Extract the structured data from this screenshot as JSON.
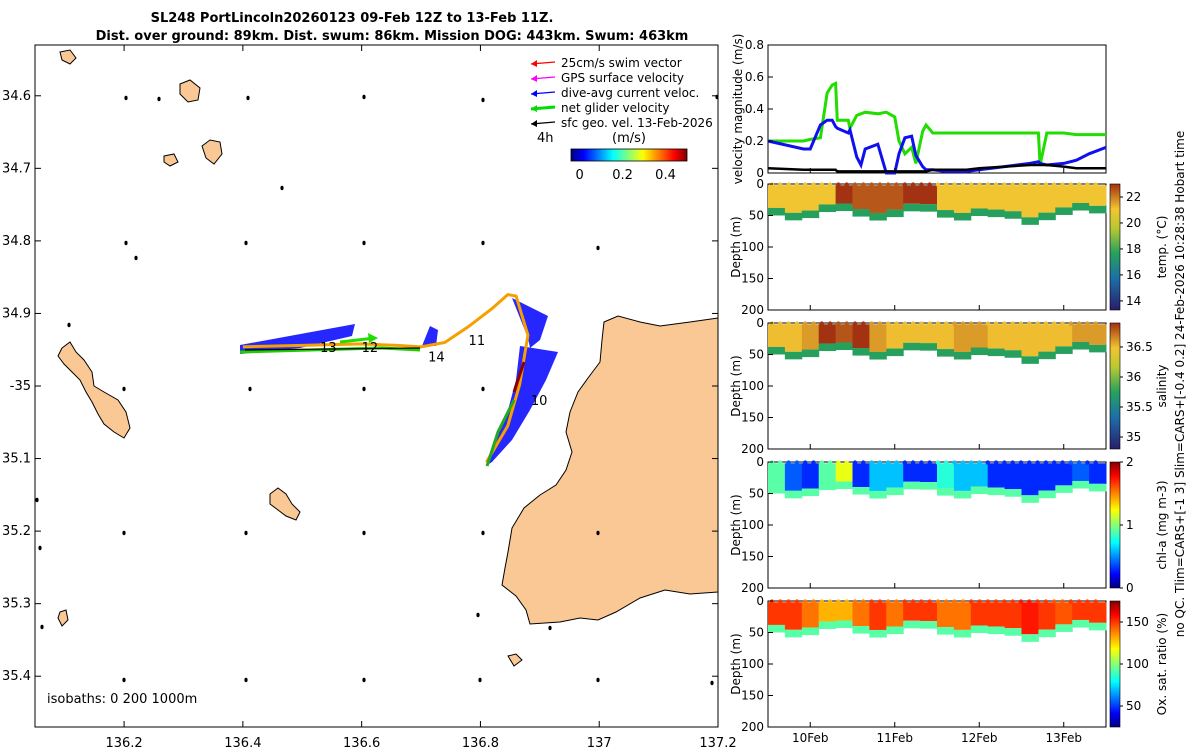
{
  "title": {
    "line1": "SL248 PortLincoln20260123 09-Feb 12Z to 13-Feb 11Z.",
    "line2": "Dist. over ground: 89km. Dist. swum: 86km. Mission DOG: 443km. Swum: 463km"
  },
  "legend": {
    "items": [
      {
        "label": "25cm/s swim vector",
        "color": "#ff0000"
      },
      {
        "label": "GPS surface velocity",
        "color": "#ff00ff"
      },
      {
        "label": "dive-avg current veloc.",
        "color": "#0000ff"
      },
      {
        "label": "net glider velocity",
        "color": "#00dd00"
      },
      {
        "label": "sfc geo. vel. 13-Feb-2026",
        "color": "#000000"
      }
    ],
    "interval": "4h",
    "colorbar_label": "(m/s)",
    "colorbar_ticks": [
      "0",
      "0.2",
      "0.4"
    ]
  },
  "isobaths": "isobaths: 0   200  1000m",
  "side_label": "no QC. Tlim=CARS+[-1 3] Slim=CARS+[-0.4 0.2] 24-Feb-2026 10:28:38 Hobart time",
  "chart_data": [
    {
      "type": "map",
      "xlim": [
        136.05,
        137.2
      ],
      "ylim": [
        -35.47,
        -34.53
      ],
      "x_ticks": [
        136.2,
        136.4,
        136.6,
        136.8,
        137,
        137.2
      ],
      "x_tick_labels": [
        "136.2",
        "136.4",
        "136.6",
        "136.8",
        "137",
        "137.2"
      ],
      "y_ticks": [
        -34.6,
        -34.7,
        -34.8,
        -34.9,
        -35,
        -35.1,
        -35.2,
        -35.3,
        -35.4
      ],
      "y_tick_labels": [
        "34.6",
        "34.7",
        "34.8",
        "34.9",
        "-35",
        "35.1",
        "35.2",
        "35.3",
        "35.4"
      ],
      "track": [
        [
          136.4,
          -34.946
        ],
        [
          136.5,
          -34.944
        ],
        [
          136.6,
          -34.942
        ],
        [
          136.66,
          -34.944
        ],
        [
          136.7,
          -34.946
        ],
        [
          136.74,
          -34.94
        ],
        [
          136.78,
          -34.918
        ],
        [
          136.82,
          -34.893
        ],
        [
          136.846,
          -34.874
        ],
        [
          136.86,
          -34.876
        ],
        [
          136.88,
          -34.93
        ],
        [
          136.866,
          -34.998
        ],
        [
          136.846,
          -35.055
        ],
        [
          136.81,
          -35.105
        ]
      ],
      "day_labels": [
        {
          "text": "13",
          "lon": 136.53,
          "lat": -34.945
        },
        {
          "text": "12",
          "lon": 136.6,
          "lat": -34.945
        },
        {
          "text": "14",
          "lon": 136.712,
          "lat": -34.958
        },
        {
          "text": "11",
          "lon": 136.78,
          "lat": -34.935
        },
        {
          "text": "10",
          "lon": 136.885,
          "lat": -35.018
        }
      ]
    },
    {
      "type": "line",
      "ylabel": "velocity magnitude (m/s)",
      "ylim": [
        0,
        0.8
      ],
      "y_ticks": [
        0,
        0.2,
        0.4,
        0.6,
        0.8
      ],
      "x": [
        9.5,
        9.92,
        10.0,
        10.12,
        10.2,
        10.26,
        10.3,
        10.32,
        10.45,
        10.47,
        10.55,
        10.6,
        10.65,
        10.8,
        10.9,
        11.0,
        11.05,
        11.12,
        11.2,
        11.25,
        11.33,
        11.37,
        11.45,
        11.6,
        11.85,
        12.0,
        12.3,
        12.6,
        12.7,
        12.72,
        12.8,
        13.0,
        13.15,
        13.3,
        13.5
      ],
      "series": [
        {
          "name": "net glider velocity",
          "color": "#22dd00",
          "values": [
            0.2,
            0.2,
            0.21,
            0.22,
            0.5,
            0.55,
            0.56,
            0.33,
            0.33,
            0.28,
            0.36,
            0.37,
            0.38,
            0.37,
            0.38,
            0.35,
            0.2,
            0.12,
            0.16,
            0.06,
            0.26,
            0.3,
            0.25,
            0.25,
            0.25,
            0.25,
            0.25,
            0.25,
            0.25,
            0.05,
            0.25,
            0.25,
            0.24,
            0.24,
            0.24
          ]
        },
        {
          "name": "dive-avg current veloc.",
          "color": "#1010ee",
          "values": [
            0.2,
            0.15,
            0.15,
            0.3,
            0.33,
            0.33,
            0.29,
            0.28,
            0.25,
            0.27,
            0.1,
            0.05,
            0.15,
            0.18,
            0.0,
            0.0,
            0.12,
            0.22,
            0.23,
            0.11,
            0.04,
            0.02,
            0.02,
            0.01,
            0.01,
            0.02,
            0.04,
            0.06,
            0.07,
            0.06,
            0.05,
            0.06,
            0.08,
            0.12,
            0.16
          ]
        },
        {
          "name": "sfc geo. vel.",
          "color": "#000000",
          "values": [
            0.03,
            0.02,
            0.02,
            0.02,
            0.02,
            0.02,
            0.02,
            0.01,
            0.01,
            0.01,
            0.01,
            0.01,
            0.01,
            0.01,
            0.01,
            0.01,
            0.01,
            0.01,
            0.01,
            0.01,
            0.01,
            0.01,
            0.02,
            0.02,
            0.02,
            0.03,
            0.04,
            0.05,
            0.05,
            0.05,
            0.05,
            0.04,
            0.03,
            0.03,
            0.03
          ]
        }
      ]
    },
    {
      "type": "heatmap",
      "variable": "temp",
      "clabel": "temp. (°C)",
      "ylabel": "Depth (m)",
      "ylim": [
        0,
        200
      ],
      "y_ticks": [
        0,
        50,
        100,
        150,
        200
      ],
      "clim": [
        13.3,
        23
      ],
      "c_ticks": [
        "14",
        "16",
        "18",
        "20",
        "22"
      ],
      "surface_values": [
        21,
        21,
        21,
        21,
        23,
        22.5,
        22.5,
        22.5,
        23,
        23,
        21,
        21,
        21,
        21,
        21,
        21,
        21,
        21,
        21,
        21
      ]
    },
    {
      "type": "heatmap",
      "variable": "salinity",
      "clabel": "salinity",
      "ylabel": "Depth (m)",
      "ylim": [
        0,
        200
      ],
      "y_ticks": [
        0,
        50,
        100,
        150,
        200
      ],
      "clim": [
        34.8,
        36.9
      ],
      "c_ticks": [
        "35",
        "35.5",
        "36",
        "36.5"
      ],
      "surface_values": [
        36.5,
        36.5,
        36.6,
        36.9,
        36.8,
        36.9,
        36.6,
        36.5,
        36.5,
        36.5,
        36.5,
        36.6,
        36.6,
        36.5,
        36.5,
        36.5,
        36.5,
        36.5,
        36.6,
        36.6
      ]
    },
    {
      "type": "heatmap",
      "variable": "chl",
      "clabel": "chl-a (mg m-3)",
      "ylabel": "Depth (m)",
      "ylim": [
        0,
        200
      ],
      "y_ticks": [
        0,
        50,
        100,
        150,
        200
      ],
      "clim": [
        0,
        2
      ],
      "c_ticks": [
        "0",
        "1",
        "2"
      ],
      "surface_values": [
        0.9,
        0.4,
        0.3,
        0.9,
        1.2,
        0.3,
        0.6,
        0.6,
        0.3,
        0.3,
        0.8,
        0.6,
        0.6,
        0.3,
        0.3,
        0.3,
        0.3,
        0.3,
        0.4,
        0.3
      ]
    },
    {
      "type": "heatmap",
      "variable": "oxsat",
      "clabel": "Ox. sat. ratio (%)",
      "ylabel": "Depth (m)",
      "ylim": [
        0,
        200
      ],
      "y_ticks": [
        0,
        50,
        100,
        150,
        200
      ],
      "clim": [
        25,
        175
      ],
      "c_ticks": [
        "50",
        "100",
        "150"
      ],
      "surface_values": [
        150,
        150,
        140,
        130,
        130,
        140,
        150,
        140,
        150,
        150,
        140,
        140,
        150,
        150,
        150,
        155,
        150,
        145,
        150,
        150
      ]
    }
  ],
  "time_axis": {
    "xlim": [
      9.5,
      13.5
    ],
    "ticks": [
      10,
      11,
      12,
      13
    ],
    "tick_labels": [
      "10Feb",
      "11Feb",
      "12Feb",
      "13Feb"
    ]
  }
}
